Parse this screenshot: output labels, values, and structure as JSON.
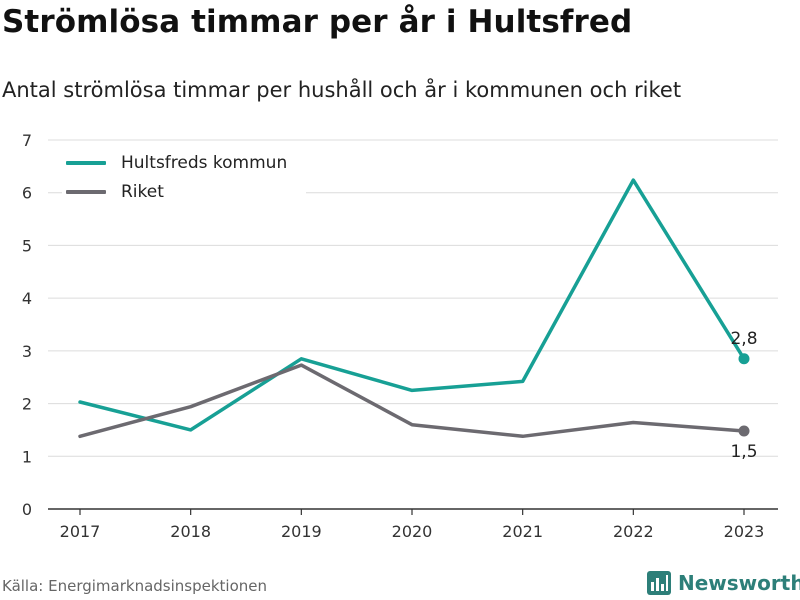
{
  "title": "Strömlösa timmar per år i Hultsfred",
  "subtitle": "Antal strömlösa timmar per hushåll och år i kommunen och riket",
  "source": "Källa: Energimarknadsinspektionen",
  "brand": {
    "name": "Newsworthy",
    "icon": "bar-chart-logo-icon",
    "color": "#2d7f79"
  },
  "chart_data": {
    "type": "line",
    "x": [
      "2017",
      "2018",
      "2019",
      "2020",
      "2021",
      "2022",
      "2023"
    ],
    "ylim": [
      0,
      7
    ],
    "yticks": [
      "0",
      "1",
      "2",
      "3",
      "4",
      "5",
      "6",
      "7"
    ],
    "grid": true,
    "legend_position": "top-left",
    "series": [
      {
        "name": "Hultsfreds kommun",
        "color": "#17a095",
        "values": [
          2.03,
          1.5,
          2.85,
          2.25,
          2.42,
          6.24,
          2.85
        ],
        "end_label": "2,8"
      },
      {
        "name": "Riket",
        "color": "#6c6a70",
        "values": [
          1.38,
          1.94,
          2.73,
          1.6,
          1.38,
          1.64,
          1.48
        ],
        "end_label": "1,5"
      }
    ]
  }
}
